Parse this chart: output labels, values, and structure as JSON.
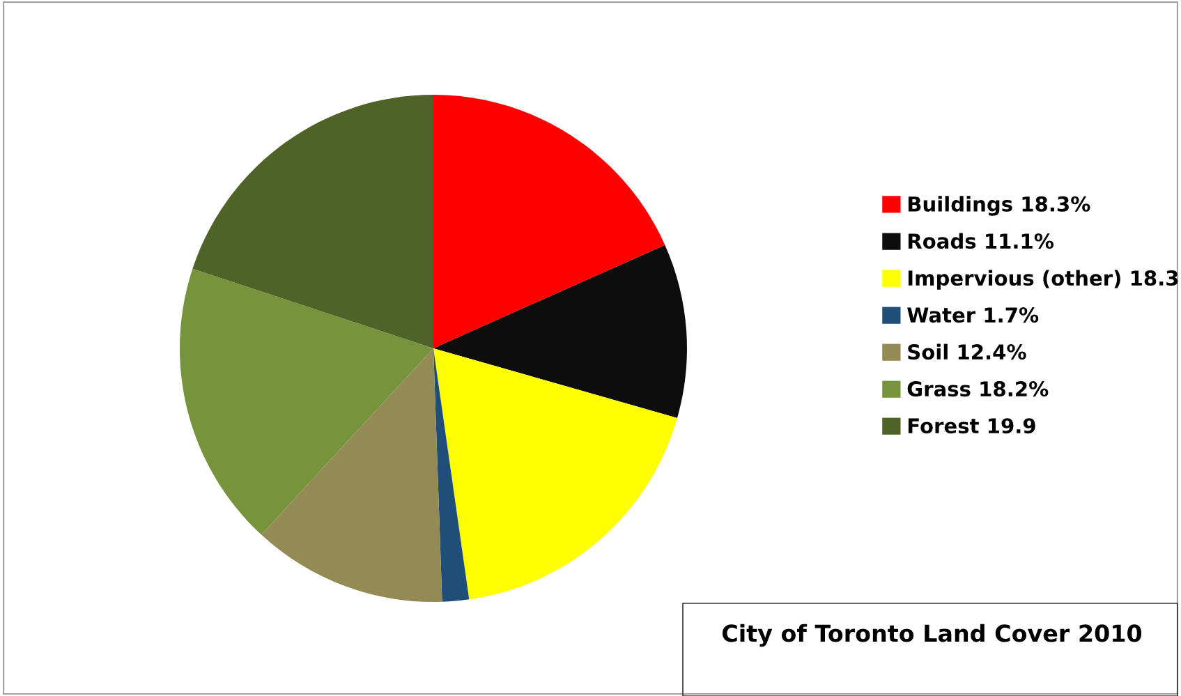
{
  "chart_data": {
    "type": "pie",
    "title": "City of Toronto Land Cover 2010",
    "categories": [
      "Buildings 18.3%",
      "Roads 11.1%",
      "Impervious (other) 18.3",
      "Water 1.7%",
      "Soil 12.4%",
      "Grass 18.2%",
      "Forest 19.9"
    ],
    "values": [
      18.3,
      11.1,
      18.3,
      1.7,
      12.4,
      18.2,
      19.9
    ],
    "colors": [
      "#ff0000",
      "#0d0d0d",
      "#ffff00",
      "#1f4e79",
      "#948a54",
      "#77933c",
      "#4f6228"
    ],
    "legend": "right"
  }
}
